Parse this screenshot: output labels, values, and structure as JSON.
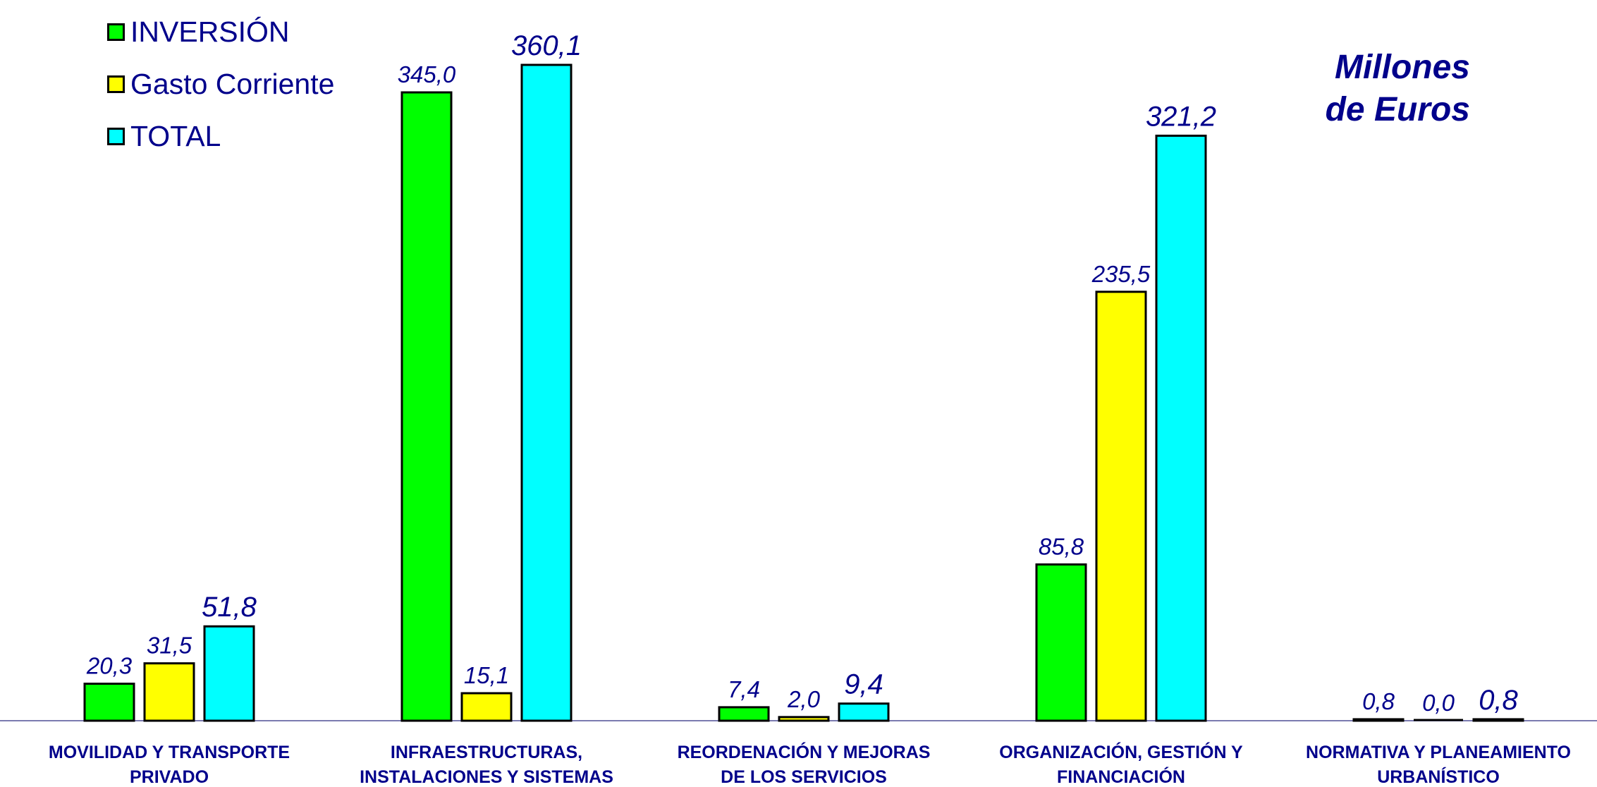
{
  "chart_data": {
    "type": "bar",
    "categories": [
      [
        "MOVILIDAD Y TRANSPORTE",
        "PRIVADO"
      ],
      [
        "INFRAESTRUCTURAS,",
        "INSTALACIONES Y SISTEMAS"
      ],
      [
        "REORDENACIÓN Y MEJORAS",
        "DE LOS SERVICIOS"
      ],
      [
        "ORGANIZACIÓN, GESTIÓN  Y",
        "FINANCIACIÓN"
      ],
      [
        "NORMATIVA Y PLANEAMIENTO",
        "URBANÍSTICO"
      ]
    ],
    "series": [
      {
        "name": "INVERSIÓN",
        "color": "#00FF00",
        "values": [
          20.3,
          345.0,
          7.4,
          85.8,
          0.8
        ],
        "labels": [
          "20,3",
          "345,0",
          "7,4",
          "85,8",
          "0,8"
        ]
      },
      {
        "name": "Gasto Corriente",
        "color": "#FFFF00",
        "values": [
          31.5,
          15.1,
          2.0,
          235.5,
          0.0
        ],
        "labels": [
          "31,5",
          "15,1",
          "2,0",
          "235,5",
          "0,0"
        ]
      },
      {
        "name": "TOTAL",
        "color": "#00FFFF",
        "values": [
          51.8,
          360.1,
          9.4,
          321.2,
          0.8
        ],
        "labels": [
          "51,8",
          "360,1",
          "9,4",
          "321,2",
          "0,8"
        ]
      }
    ],
    "units_label": [
      "Millones",
      "de Euros"
    ],
    "ylim": [
      0,
      360.1
    ],
    "legend_position": "top-left",
    "grid": false,
    "label_color": "#00008B"
  }
}
